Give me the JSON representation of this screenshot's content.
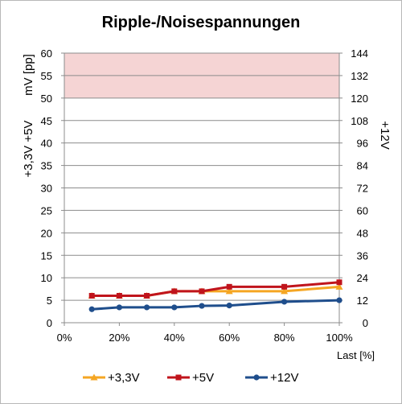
{
  "chart_data": {
    "type": "line",
    "title": "Ripple-/Noisespannungen",
    "xlabel": "Last [%]",
    "ylabel_left_top": "mV [pp]",
    "ylabel_left_bottom": "+3,3V +5V",
    "ylabel_right": "+12V",
    "x_ticks": [
      "0%",
      "20%",
      "40%",
      "60%",
      "80%",
      "100%"
    ],
    "xlim": [
      0,
      100
    ],
    "ylim_left": [
      0,
      60
    ],
    "ylim_right": [
      0,
      144
    ],
    "y_ticks_left": [
      "0",
      "5",
      "10",
      "15",
      "20",
      "25",
      "30",
      "35",
      "40",
      "45",
      "50",
      "55",
      "60"
    ],
    "y_ticks_right": [
      "0",
      "12",
      "24",
      "36",
      "48",
      "60",
      "72",
      "84",
      "96",
      "108",
      "120",
      "132",
      "144"
    ],
    "limit_band_left": [
      50,
      60
    ],
    "limit_band_color": "#f5d4d4",
    "grid": true,
    "legend_position": "bottom",
    "series": [
      {
        "name": "+3,3V",
        "axis": "left",
        "color": "#f5a623",
        "marker": "triangle",
        "x": [
          10,
          20,
          30,
          40,
          50,
          60,
          80,
          100
        ],
        "values": [
          6,
          6,
          6,
          7,
          7,
          7,
          7,
          8
        ]
      },
      {
        "name": "+5V",
        "axis": "left",
        "color": "#c0141c",
        "marker": "square",
        "x": [
          10,
          20,
          30,
          40,
          50,
          60,
          80,
          100
        ],
        "values": [
          6,
          6,
          6,
          7,
          7,
          8,
          8,
          9
        ]
      },
      {
        "name": "+12V",
        "axis": "right",
        "color": "#1f4e8c",
        "marker": "circle",
        "x": [
          10,
          20,
          30,
          40,
          50,
          60,
          80,
          100
        ],
        "values": [
          7.2,
          8.2,
          8.2,
          8.2,
          9,
          9.2,
          11.2,
          12
        ]
      }
    ]
  }
}
